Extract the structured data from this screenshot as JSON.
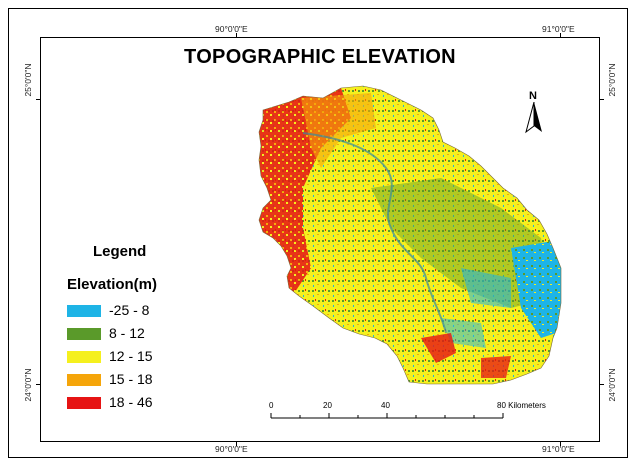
{
  "map": {
    "title": "TOPOGRAPHIC ELEVATION",
    "graticule": {
      "top": [
        "90°0'0\"E",
        "91°0'0\"E"
      ],
      "bottom": [
        "90°0'0\"E",
        "91°0'0\"E"
      ],
      "left": [
        "25°0'0\"N",
        "24°0'0\"N"
      ],
      "right": [
        "25°0'0\"N",
        "24°0'0\"N"
      ]
    },
    "legend": {
      "heading": "Legend",
      "subheading": "Elevation(m)",
      "classes": [
        {
          "label": "-25 - 8",
          "color": "#1eb4e6"
        },
        {
          "label": "8 - 12",
          "color": "#5a9a2a"
        },
        {
          "label": "12 - 15",
          "color": "#f5f01e"
        },
        {
          "label": "15 - 18",
          "color": "#f5a50a"
        },
        {
          "label": "18 - 46",
          "color": "#e61414"
        }
      ]
    },
    "north_arrow": {
      "label": "N"
    },
    "scale_bar": {
      "ticks": [
        "0",
        "20",
        "40",
        "80 Kilometers"
      ]
    }
  }
}
